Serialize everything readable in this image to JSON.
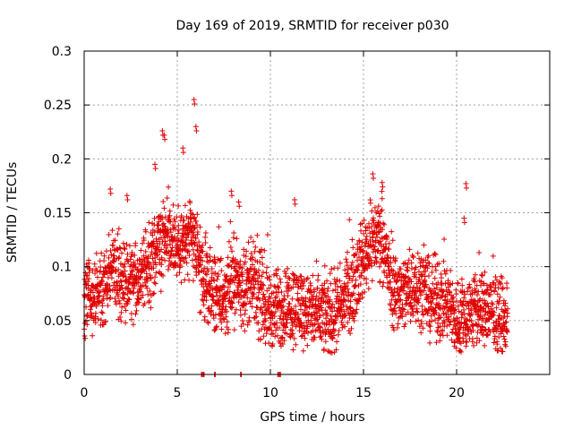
{
  "chart_data": {
    "type": "scatter",
    "title": "Day 169 of 2019, SRMTID for receiver p030",
    "xlabel": "GPS time / hours",
    "ylabel": "SRMTID / TECUs",
    "xlim": [
      0,
      25
    ],
    "ylim": [
      0,
      0.3
    ],
    "x_ticks": [
      0,
      5,
      10,
      15,
      20
    ],
    "y_ticks": [
      0,
      0.05,
      0.1,
      0.15,
      0.2,
      0.25,
      0.3
    ],
    "x_tick_labels": [
      "0",
      "5",
      "10",
      "15",
      "20"
    ],
    "y_tick_labels": [
      "0",
      "0.05",
      "0.1",
      "0.15",
      "0.2",
      "0.25",
      "0.3"
    ],
    "grid": true,
    "marker": "+",
    "marker_color": "#e00000",
    "time_range": [
      0.0,
      22.75
    ],
    "sample_step_hours": 0.0083,
    "trend": {
      "x": [
        0,
        0.5,
        1,
        1.5,
        2,
        2.5,
        3,
        3.5,
        4,
        4.5,
        5,
        5.5,
        6,
        6.5,
        7,
        7.5,
        8,
        8.5,
        9,
        9.5,
        10,
        10.5,
        11,
        11.5,
        12,
        12.5,
        13,
        13.5,
        14,
        14.5,
        15,
        15.5,
        16,
        16.5,
        17,
        17.5,
        18,
        18.5,
        19,
        19.5,
        20,
        20.5,
        21,
        21.5,
        22,
        22.75
      ],
      "y": [
        0.07,
        0.075,
        0.08,
        0.1,
        0.085,
        0.085,
        0.09,
        0.1,
        0.12,
        0.13,
        0.12,
        0.125,
        0.12,
        0.08,
        0.075,
        0.07,
        0.09,
        0.08,
        0.085,
        0.07,
        0.06,
        0.06,
        0.065,
        0.065,
        0.06,
        0.055,
        0.055,
        0.055,
        0.07,
        0.085,
        0.11,
        0.125,
        0.13,
        0.08,
        0.075,
        0.08,
        0.085,
        0.07,
        0.07,
        0.065,
        0.05,
        0.055,
        0.06,
        0.06,
        0.055,
        0.05
      ]
    },
    "spread": 0.022,
    "spikes": [
      {
        "x": 1.4,
        "y": 0.172
      },
      {
        "x": 2.3,
        "y": 0.166
      },
      {
        "x": 3.8,
        "y": 0.195
      },
      {
        "x": 4.2,
        "y": 0.226
      },
      {
        "x": 4.3,
        "y": 0.222
      },
      {
        "x": 5.3,
        "y": 0.21
      },
      {
        "x": 5.9,
        "y": 0.255
      },
      {
        "x": 6.0,
        "y": 0.23
      },
      {
        "x": 7.9,
        "y": 0.17
      },
      {
        "x": 8.3,
        "y": 0.16
      },
      {
        "x": 11.3,
        "y": 0.162
      },
      {
        "x": 15.5,
        "y": 0.186
      },
      {
        "x": 16.0,
        "y": 0.178
      },
      {
        "x": 20.5,
        "y": 0.177
      },
      {
        "x": 20.4,
        "y": 0.145
      }
    ],
    "zero_markers": [
      6.3,
      6.4,
      7.0,
      8.4,
      10.4,
      10.5
    ]
  }
}
